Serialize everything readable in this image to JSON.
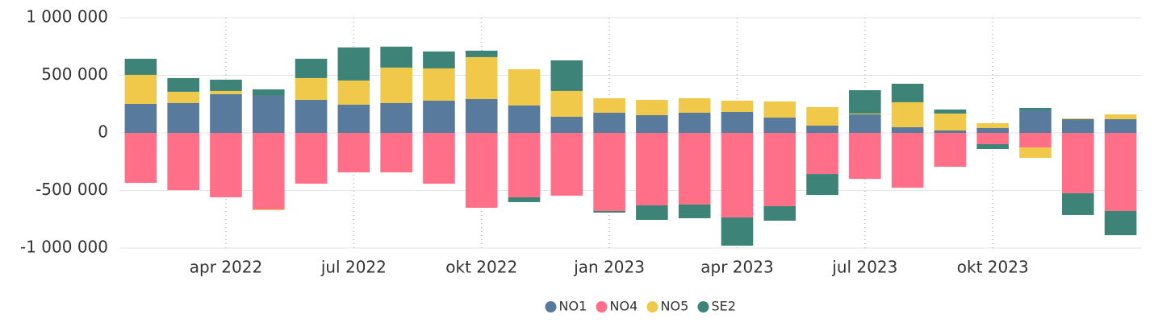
{
  "chart_data": {
    "type": "stacked-bar",
    "categories": [
      null,
      null,
      "apr 2022",
      null,
      null,
      "jul 2022",
      null,
      null,
      "okt 2022",
      null,
      null,
      "jan 2023",
      null,
      null,
      "apr 2023",
      null,
      null,
      "jul 2023",
      null,
      null,
      "okt 2023",
      null,
      null,
      null
    ],
    "series": [
      {
        "name": "NO1",
        "color": "#587a9c",
        "values": [
          252000,
          259000,
          336000,
          322000,
          287000,
          245000,
          259000,
          280000,
          294000,
          238000,
          140000,
          175000,
          154000,
          175000,
          182000,
          133000,
          63000,
          161000,
          49000,
          21000,
          42000,
          196000,
          119000,
          119000
        ]
      },
      {
        "name": "NO4",
        "color": "#ff6f87",
        "values": [
          -434000,
          -497000,
          -559000,
          -664000,
          -441000,
          -343000,
          -343000,
          -441000,
          -650000,
          -559000,
          -545000,
          -678000,
          -629000,
          -622000,
          -734000,
          -636000,
          -357000,
          -399000,
          -476000,
          -294000,
          -98000,
          -126000,
          -524000,
          -678000
        ]
      },
      {
        "name": "NO5",
        "color": "#f0c94a",
        "values": [
          252000,
          98000,
          28000,
          -7000,
          189000,
          210000,
          308000,
          280000,
          364000,
          315000,
          224000,
          126000,
          133000,
          126000,
          98000,
          140000,
          161000,
          7000,
          217000,
          147000,
          42000,
          -91000,
          7000,
          42000
        ]
      },
      {
        "name": "SE2",
        "color": "#3e8377",
        "values": [
          140000,
          119000,
          98000,
          56000,
          168000,
          287000,
          182000,
          147000,
          56000,
          -42000,
          266000,
          -14000,
          -126000,
          -119000,
          -245000,
          -126000,
          -182000,
          203000,
          161000,
          35000,
          -42000,
          21000,
          -189000,
          -210000
        ]
      }
    ],
    "ylim": [
      -1000000,
      1000000
    ],
    "yticks": [
      {
        "value": -1000000,
        "label": "-1 000 000"
      },
      {
        "value": -500000,
        "label": "-500 000"
      },
      0,
      {
        "value": 500000,
        "label": "500 000"
      },
      {
        "value": 1000000,
        "label": "1 000 000"
      }
    ],
    "grid": true,
    "legend": "bottom"
  }
}
